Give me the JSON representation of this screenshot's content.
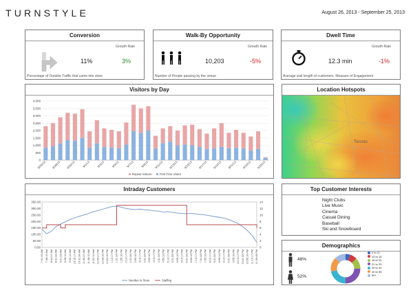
{
  "header": {
    "logo": "TURNSTYLE",
    "date_range": "August 26, 2013 - September 25, 2013"
  },
  "kpis": [
    {
      "title": "Conversion",
      "growth_label": "Growth Rate",
      "value": "11%",
      "growth": "3%",
      "growth_color": "#2e8b2e",
      "footnote": "Percentage of Outside Traffic that came into store",
      "icon": "arrow-turn-icon"
    },
    {
      "title": "Walk-By Opportunity",
      "growth_label": "Growth Rate",
      "value": "10,203",
      "growth": "-5%",
      "growth_color": "#d42020",
      "footnote": "Number of People passing by the venue",
      "icon": "people-walking-icon"
    },
    {
      "title": "Dwell Time",
      "growth_label": "Growth Rate",
      "value": "12.3 min",
      "growth": "-1%",
      "growth_color": "#d42020",
      "footnote": "Average visit length of customers. Measure of Engagement",
      "icon": "stopwatch-icon"
    }
  ],
  "panels": {
    "visitors_title": "Visitors by Day",
    "hotspots_title": "Location Hotspots",
    "intraday_title": "Intraday Customers",
    "interests_title": "Top Customer Interests",
    "demographics_title": "Demographics"
  },
  "interests": [
    "Night Clubs",
    "Live Music",
    "Cinema",
    "Casual Dining",
    "Baseball",
    "Ski and Snowboard"
  ],
  "demographics": {
    "male_pct": "48%",
    "female_pct": "52%",
    "age_groups": [
      {
        "label": "0 to 11",
        "color": "#3a66c4",
        "share": 0.05
      },
      {
        "label": "12 to 15",
        "color": "#d13c3c",
        "share": 0.08
      },
      {
        "label": "16 to 20",
        "color": "#a2c04b",
        "share": 0.12
      },
      {
        "label": "21 to 29",
        "color": "#7d55b0",
        "share": 0.25
      },
      {
        "label": "30 to 40",
        "color": "#39b3d0",
        "share": 0.22
      },
      {
        "label": "40 to 55",
        "color": "#f2994a",
        "share": 0.16
      },
      {
        "label": "55+",
        "color": "#9fb8e6",
        "share": 0.12
      }
    ]
  },
  "map": {
    "labels": [
      "Toronto"
    ]
  },
  "chart_data": [
    {
      "type": "bar",
      "title": "Visitors by Day",
      "stacked": true,
      "ylim": [
        0,
        4000
      ],
      "yticks": [
        "0",
        "500",
        "1,000",
        "1,500",
        "2,000",
        "2,500",
        "3,000",
        "3,500",
        "4,000"
      ],
      "ytick_values": [
        0,
        500,
        1000,
        1500,
        2000,
        2500,
        3000,
        3500,
        4000
      ],
      "categories": [
        "8/26/13",
        "8/27/13",
        "8/28/13",
        "8/29/13",
        "8/30/13",
        "8/31/13",
        "9/1/13",
        "9/2/13",
        "9/3/13",
        "9/4/13",
        "9/5/13",
        "9/6/13",
        "9/7/13",
        "9/8/13",
        "9/9/13",
        "9/10/13",
        "9/11/13",
        "9/12/13",
        "9/13/13",
        "9/14/13",
        "9/15/13",
        "9/16/13",
        "9/17/13",
        "9/18/13",
        "9/19/13",
        "9/20/13",
        "9/21/13",
        "9/22/13",
        "9/23/13",
        "9/24/13",
        "9/25/13"
      ],
      "tick_labels": [
        "8/26/13",
        "8/28/13",
        "8/30/13",
        "9/1/13",
        "9/3/13",
        "9/5/13",
        "9/7/13",
        "9/9/13",
        "9/11/13",
        "9/13/13",
        "9/15/13",
        "9/17/13",
        "9/19/13",
        "9/21/13",
        "9/23/13",
        "9/25/13"
      ],
      "series": [
        {
          "name": "First Time Visitor",
          "color": "#8cb3e0",
          "values": [
            850,
            950,
            1150,
            1350,
            1300,
            1500,
            850,
            1150,
            900,
            850,
            800,
            1050,
            1950,
            1850,
            2000,
            800,
            1150,
            1250,
            1000,
            1050,
            1000,
            900,
            750,
            800,
            900,
            800,
            850,
            800,
            650,
            750,
            150
          ]
        },
        {
          "name": "Repeat Visitors",
          "color": "#e8a6a6",
          "values": [
            1450,
            1550,
            1750,
            1850,
            1850,
            1950,
            1100,
            1550,
            1250,
            1200,
            1150,
            1500,
            1800,
            1650,
            1650,
            850,
            1000,
            1050,
            1000,
            1300,
            1400,
            1200,
            1050,
            1350,
            1600,
            1050,
            1200,
            1050,
            950,
            1200,
            50
          ]
        }
      ]
    },
    {
      "type": "line",
      "title": "Intraday Customers",
      "x": [
        "7:01:33 AM",
        "7:38:10 AM",
        "8:04:21 AM",
        "8:31:33 AM",
        "9:01:33 AM",
        "9:28:10 AM",
        "9:52:10 AM",
        "10:15:17 AM",
        "10:31:34 AM",
        "11:00:21 AM",
        "11:28:10 AM",
        "11:52:10 AM",
        "12:00:21 PM",
        "12:28:10 PM",
        "12:52:10 PM",
        "1:10:17 PM",
        "1:31:33 PM",
        "1:55:10 PM",
        "2:10:17 PM",
        "2:31:33 PM",
        "2:55:10 PM",
        "3:10:17 PM",
        "3:31:33 PM",
        "3:55:10 PM",
        "4:10:17 PM",
        "4:31:33 PM",
        "4:55:10 PM",
        "5:10:17 PM",
        "5:31:33 PM",
        "5:55:10 PM",
        "6:10:17 PM",
        "6:31:33 PM",
        "6:55:10 PM",
        "7:10:17 PM",
        "7:31:33 PM",
        "7:55:10 PM",
        "8:10:17 PM",
        "8:31:33 PM",
        "8:55:10 PM",
        "9:10:17 PM",
        "9:31:33 PM",
        "9:55:10 PM",
        "10:10:17 PM",
        "10:31:33 PM",
        "10:55:10 PM",
        "11:10:17 PM",
        "11:39:46 PM"
      ],
      "ylim": [
        0,
        350
      ],
      "yticks": [
        "0.00",
        "50.00",
        "100.00",
        "150.00",
        "200.00",
        "250.00",
        "300.00",
        "350.00"
      ],
      "ytick_values": [
        0,
        50,
        100,
        150,
        200,
        250,
        300,
        350
      ],
      "y2lim": [
        0,
        14
      ],
      "y2ticks": [
        "0",
        "2",
        "4",
        "6",
        "8",
        "10",
        "12",
        "14"
      ],
      "y2tick_values": [
        0,
        2,
        4,
        6,
        8,
        10,
        12,
        14
      ],
      "series": [
        {
          "name": "Number in Store",
          "color": "#6f96c8",
          "axis": "left",
          "values": [
            140,
            105,
            125,
            160,
            180,
            198,
            215,
            228,
            240,
            250,
            262,
            275,
            285,
            295,
            305,
            315,
            318,
            310,
            300,
            295,
            292,
            295,
            290,
            288,
            282,
            280,
            272,
            275,
            270,
            265,
            262,
            260,
            262,
            258,
            254,
            250,
            244,
            238,
            232,
            225,
            215,
            200,
            185,
            160,
            130,
            92,
            40
          ]
        },
        {
          "name": "Staffing",
          "color": "#b84b4b",
          "axis": "right",
          "values": [
            6,
            7,
            7,
            7,
            6,
            7,
            7,
            7,
            7,
            7,
            7,
            7,
            7,
            7,
            7,
            7,
            13,
            13,
            13,
            13,
            13,
            13,
            13,
            13,
            13,
            13,
            13,
            13,
            13,
            13,
            13,
            7,
            7,
            7,
            7,
            7,
            7,
            7,
            7,
            7,
            7,
            7,
            7,
            7,
            7,
            7,
            6
          ]
        }
      ]
    }
  ]
}
